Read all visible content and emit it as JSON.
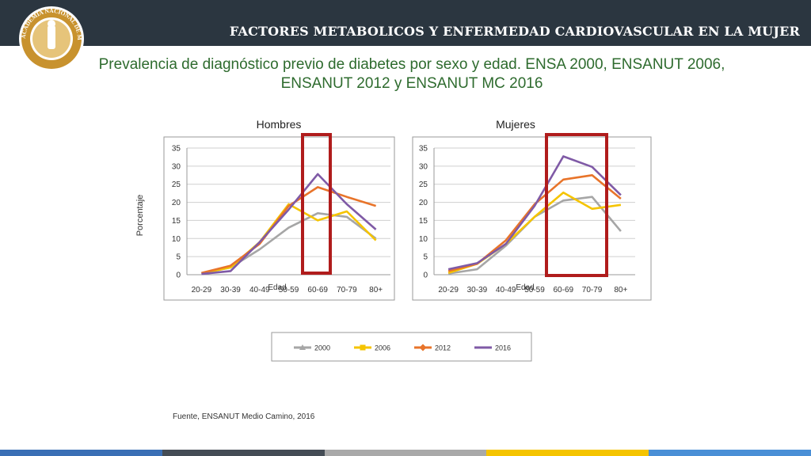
{
  "header": {
    "title": "FACTORES METABOLICOS Y ENFERMEDAD CARDIOVASCULAR EN LA MUJER"
  },
  "logo": {
    "text": "ACADEMIA NACIONAL DE MEDICINA"
  },
  "subtitle": {
    "line1": "Prevalencia de diagnóstico previo de diabetes por sexo y edad. ENSA 2000, ENSANUT 2006,",
    "line2": "ENSANUT 2012 y ENSANUT MC 2016"
  },
  "source": "Fuente, ENSANUT Medio Camino, 2016",
  "colors": {
    "header_bg": "#2b3640",
    "highlight_box": "#b01c1c",
    "subtitle": "#2e6b2e"
  },
  "bottom_bar_colors": [
    "#3a6fb5",
    "#444c55",
    "#a9a9a9",
    "#f5c400",
    "#4a8fd6"
  ],
  "chart_data": [
    {
      "type": "line",
      "title": "Hombres",
      "xlabel": "Edad",
      "ylabel": "Porcentaje",
      "categories": [
        "20-29",
        "30-39",
        "40-49",
        "50-59",
        "60-69",
        "70-79",
        "80+"
      ],
      "ylim": [
        0,
        35
      ],
      "yticks": [
        0,
        5,
        10,
        15,
        20,
        25,
        30,
        35
      ],
      "grid": true,
      "highlight_category": "60-69",
      "series": [
        {
          "name": "2000",
          "color": "#a6a6a6",
          "values": [
            0.3,
            2.0,
            7.0,
            13.0,
            17.0,
            16.0,
            10.0
          ]
        },
        {
          "name": "2006",
          "color": "#f5c400",
          "values": [
            0.4,
            2.0,
            9.0,
            19.5,
            15.0,
            17.5,
            9.5
          ]
        },
        {
          "name": "2012",
          "color": "#e8742a",
          "values": [
            0.5,
            2.5,
            8.5,
            19.0,
            24.2,
            21.5,
            19.0
          ]
        },
        {
          "name": "2016",
          "color": "#7f5aa6",
          "values": [
            0.2,
            1.0,
            9.0,
            18.0,
            27.8,
            19.5,
            12.5
          ]
        }
      ]
    },
    {
      "type": "line",
      "title": "Mujeres",
      "xlabel": "Edad",
      "ylabel": "",
      "categories": [
        "20-29",
        "30-39",
        "40-49",
        "50-59",
        "60-69",
        "70-79",
        "80+"
      ],
      "ylim": [
        0,
        35
      ],
      "yticks": [
        0,
        5,
        10,
        15,
        20,
        25,
        30,
        35
      ],
      "grid": true,
      "highlight_categories": [
        "60-69",
        "70-79"
      ],
      "series": [
        {
          "name": "2000",
          "color": "#a6a6a6",
          "values": [
            0.3,
            1.5,
            8.0,
            16.0,
            20.5,
            21.5,
            12.0
          ]
        },
        {
          "name": "2006",
          "color": "#f5c400",
          "values": [
            0.5,
            3.0,
            8.5,
            16.0,
            22.7,
            18.2,
            19.3
          ]
        },
        {
          "name": "2012",
          "color": "#e8742a",
          "values": [
            1.0,
            3.0,
            9.5,
            19.5,
            26.3,
            27.5,
            21.0
          ]
        },
        {
          "name": "2016",
          "color": "#7f5aa6",
          "values": [
            1.5,
            3.2,
            8.5,
            19.0,
            32.7,
            29.8,
            22.0
          ]
        }
      ]
    }
  ],
  "legend": {
    "items": [
      "2000",
      "2006",
      "2012",
      "2016"
    ]
  }
}
